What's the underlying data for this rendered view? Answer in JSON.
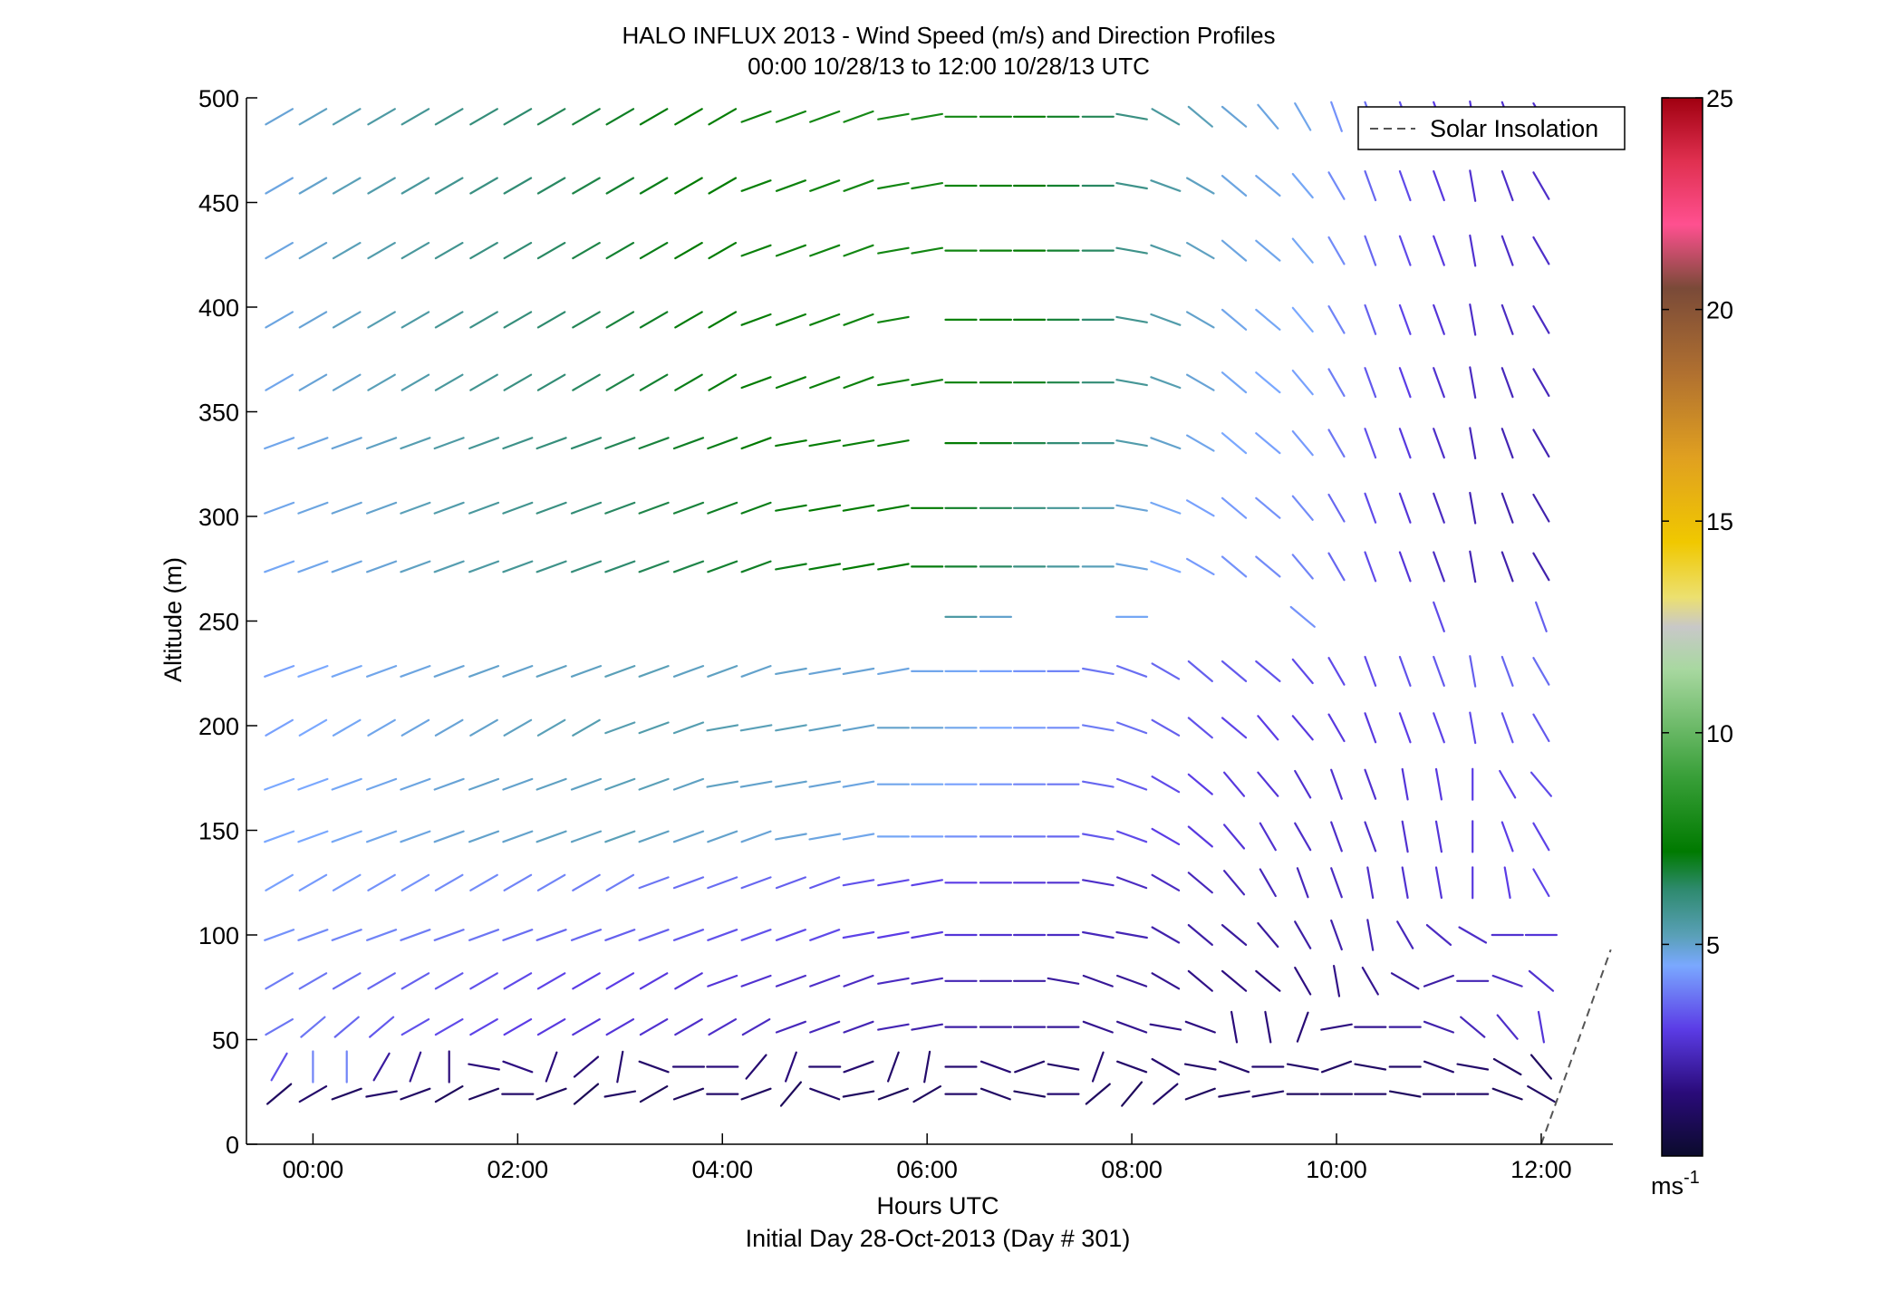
{
  "title": "HALO INFLUX 2013 - Wind Speed (m/s) and Direction Profiles",
  "subtitle": "00:00 10/28/13 to 12:00 10/28/13  UTC",
  "legend_label": "Solar Insolation",
  "colorbar_unit_base": "ms",
  "colorbar_unit_exp": "-1",
  "chart_data": {
    "type": "wind-barb",
    "title": "HALO INFLUX 2013 - Wind Speed (m/s) and Direction Profiles",
    "subtitle": "00:00 10/28/13 to 12:00 10/28/13  UTC",
    "xlabel": "Hours UTC",
    "xlabel2": "Initial Day 28-Oct-2013 (Day # 301)",
    "ylabel": "Altitude (m)",
    "xlim_hours": [
      -0.65,
      12.7
    ],
    "ylim": [
      0,
      500
    ],
    "x_ticks": [
      {
        "value": 0,
        "label": "00:00"
      },
      {
        "value": 2,
        "label": "02:00"
      },
      {
        "value": 4,
        "label": "04:00"
      },
      {
        "value": 6,
        "label": "06:00"
      },
      {
        "value": 8,
        "label": "08:00"
      },
      {
        "value": 10,
        "label": "10:00"
      },
      {
        "value": 12,
        "label": "12:00"
      }
    ],
    "y_ticks": [
      {
        "value": 0,
        "label": "0"
      },
      {
        "value": 50,
        "label": "50"
      },
      {
        "value": 100,
        "label": "100"
      },
      {
        "value": 150,
        "label": "150"
      },
      {
        "value": 200,
        "label": "200"
      },
      {
        "value": 250,
        "label": "250"
      },
      {
        "value": 300,
        "label": "300"
      },
      {
        "value": 350,
        "label": "350"
      },
      {
        "value": 400,
        "label": "400"
      },
      {
        "value": 450,
        "label": "450"
      },
      {
        "value": 500,
        "label": "500"
      }
    ],
    "colorbar": {
      "range": [
        0,
        25
      ],
      "ticks": [
        {
          "value": 5,
          "label": "5"
        },
        {
          "value": 10,
          "label": "10"
        },
        {
          "value": 15,
          "label": "15"
        },
        {
          "value": 20,
          "label": "20"
        },
        {
          "value": 25,
          "label": "25"
        }
      ],
      "stops": [
        {
          "v": 0,
          "c": "#0b0b2c"
        },
        {
          "v": 1.5,
          "c": "#2a0b7a"
        },
        {
          "v": 3,
          "c": "#5b3ce6"
        },
        {
          "v": 4.5,
          "c": "#7aa8ff"
        },
        {
          "v": 5.2,
          "c": "#5aa0b8"
        },
        {
          "v": 6.3,
          "c": "#2e8a6e"
        },
        {
          "v": 7.2,
          "c": "#007a00"
        },
        {
          "v": 9,
          "c": "#3aa03a"
        },
        {
          "v": 11.5,
          "c": "#a8d8a0"
        },
        {
          "v": 12.5,
          "c": "#c8c8c8"
        },
        {
          "v": 13.2,
          "c": "#ece070"
        },
        {
          "v": 14.5,
          "c": "#f0c800"
        },
        {
          "v": 16.5,
          "c": "#e0a020"
        },
        {
          "v": 18.5,
          "c": "#b07030"
        },
        {
          "v": 20.5,
          "c": "#7a4a38"
        },
        {
          "v": 22,
          "c": "#ff5090"
        },
        {
          "v": 23.5,
          "c": "#e03050"
        },
        {
          "v": 25,
          "c": "#a00010"
        }
      ]
    },
    "legend": {
      "position": "top-right",
      "entries": [
        {
          "name": "Solar Insolation",
          "style": "dashed",
          "color": "#555555"
        }
      ]
    },
    "times_hours": [
      -0.33,
      0.0,
      0.33,
      0.67,
      1.0,
      1.33,
      1.67,
      2.0,
      2.33,
      2.67,
      3.0,
      3.33,
      3.67,
      4.0,
      4.33,
      4.67,
      5.0,
      5.33,
      5.67,
      6.0,
      6.33,
      6.67,
      7.0,
      7.33,
      7.67,
      8.0,
      8.33,
      8.67,
      9.0,
      9.33,
      9.67,
      10.0,
      10.33,
      10.67,
      11.0,
      11.33,
      11.67,
      12.0
    ],
    "altitudes_m": [
      24,
      37,
      56,
      78,
      100,
      125,
      147,
      172,
      199,
      226,
      252,
      276,
      304,
      335,
      364,
      394,
      427,
      458,
      491
    ],
    "wind_direction_deg_rows": [
      "230,240,250,260,250,240,250,270,250,230,260,240,250,270,250,220,290,260,250,240,270,290,280,270,230,220,230,250,260,260,270,270,270,280,270,270,290,300",
      "210,0,0,210,200,0,280,290,200,230,190,290,270,270,220,200,270,250,200,190,270,290,250,280,200,290,300,280,290,270,280,250,280,270,290,280,300,320",
      "240,230,230,230,240,240,240,240,240,240,240,240,240,240,240,250,250,250,260,260,270,270,270,270,290,290,280,290,350,350,200,260,270,270,290,310,320,350",
      "240,240,240,240,240,240,240,240,240,240,240,240,240,250,250,250,250,250,260,260,270,270,270,280,290,290,300,310,310,310,330,350,330,300,250,270,290,310",
      "250,250,250,250,250,250,250,250,250,250,250,250,250,250,250,250,250,260,260,260,270,270,270,270,280,280,300,310,310,320,330,340,350,330,310,300,270,270",
      "240,240,240,240,240,240,240,240,240,240,240,250,250,250,250,250,250,260,260,260,270,270,270,270,280,290,300,310,320,330,340,340,350,350,350,360,350,330",
      "250,250,250,250,250,250,250,250,250,250,250,250,250,250,250,260,260,260,270,270,270,270,270,270,280,290,300,310,320,330,330,340,340,350,350,360,340,330",
      "250,250,250,250,250,250,250,250,250,250,250,250,250,260,260,260,260,260,270,270,270,270,270,270,280,290,300,310,320,320,330,340,340,350,350,360,330,320",
      "240,240,240,240,240,240,240,240,240,240,250,250,250,260,260,260,260,260,270,270,270,270,270,270,280,290,300,310,310,320,320,330,340,340,340,350,340,330",
      "250,250,250,250,250,250,250,250,250,250,250,250,250,250,250,260,260,260,260,270,270,270,270,270,280,290,300,310,310,310,320,330,340,340,340,350,340,330",
      "-1,-1,-1,-1,-1,-1,-1,-1,-1,-1,-1,-1,-1,-1,-1,-1,-1,-1,-1,-1,270,270,-1,-1,-1,270,-1,-1,-1,-1,310,-1,-1,-1,340,-1,-1,340",
      "250,250,250,250,250,250,250,250,250,250,250,250,250,250,250,260,260,260,260,270,270,270,270,270,270,280,290,300,310,310,320,330,340,340,340,350,340,330",
      "250,250,250,250,250,250,250,250,250,250,250,250,250,250,250,260,260,260,260,270,270,270,270,270,270,280,290,300,310,310,320,330,340,340,340,350,340,330",
      "250,250,250,250,250,250,250,250,250,250,250,250,250,250,250,260,260,260,260,-1,270,270,270,270,270,280,290,300,310,310,320,330,340,340,340,350,340,330",
      "240,240,240,240,240,240,240,240,240,240,240,240,240,240,250,250,250,250,260,260,270,270,270,270,270,280,290,300,310,310,320,330,340,340,340,350,340,330",
      "240,240,240,240,240,240,240,240,240,240,240,240,240,240,250,250,250,250,260,-1,270,270,270,270,270,280,290,300,310,310,320,330,340,340,340,350,340,330",
      "240,240,240,240,240,240,240,240,240,240,240,240,240,240,250,250,250,250,260,260,270,270,270,270,270,280,290,300,310,310,320,330,340,340,340,350,340,330",
      "240,240,240,240,240,240,240,240,240,240,240,240,240,240,250,250,250,250,260,260,270,270,270,270,270,280,290,300,310,310,320,330,340,340,340,350,340,330",
      "240,240,240,240,240,240,240,240,240,240,240,240,240,240,250,250,250,250,260,260,270,270,270,270,270,280,300,310,310,320,330,340,340,340,340,350,340,330"
    ],
    "wind_speed_ms_rows": [
      "1.0,1.2,1.0,1.2,1.1,0.9,1.0,1.2,1.0,0.8,1.1,0.9,1.0,1.2,1.0,0.9,1.2,1.0,0.9,1.0,1.2,1.1,1.0,1.3,1.0,0.9,1.2,1.0,1.1,1.2,1.0,1.1,1.2,1.0,1.2,1.2,1.0,1.1",
      "3.3,4.0,4.0,2.0,1.8,1.5,1.5,1.6,1.5,1.4,1.3,1.2,1.4,1.5,1.3,1.5,1.3,1.3,1.2,1.2,1.3,1.4,1.2,1.2,1.3,1.2,1.3,1.2,1.2,1.3,1.2,1.1,1.1,1.2,1.3,1.2,1.1,1.0",
      "3.8,3.8,3.6,3.4,3.3,3.2,3.1,3.0,2.9,2.8,2.8,2.7,2.6,2.6,2.5,2.4,2.4,2.3,2.3,2.2,2.1,2.0,2.0,1.9,1.8,1.8,1.7,1.6,1.5,1.5,1.4,1.6,1.8,2.0,2.2,2.4,2.6,2.8",
      "3.9,3.8,3.7,3.6,3.5,3.4,3.3,3.2,3.1,3.0,3.0,2.9,2.8,2.8,2.7,2.6,2.6,2.5,2.5,2.4,2.3,2.2,2.1,2.0,1.9,1.9,1.8,1.7,1.6,1.6,1.6,1.7,1.8,2.0,2.1,2.3,2.5,2.7",
      "4.2,4.1,4.0,4.0,3.9,3.8,3.8,3.7,3.6,3.6,3.5,3.5,3.4,3.3,3.3,3.2,3.2,3.1,3.0,2.9,2.8,2.7,2.6,2.5,2.4,2.3,2.2,2.1,2.0,2.0,2.1,2.2,2.3,2.4,2.5,2.6,2.7,2.8",
      "4.4,4.3,4.3,4.2,4.2,4.1,4.1,4.0,4.0,3.9,3.9,3.8,3.7,3.7,3.6,3.5,3.4,3.3,3.2,3.1,3.0,2.9,2.8,2.7,2.6,2.5,2.5,2.4,2.4,2.4,2.4,2.5,2.6,2.7,2.8,2.9,3.0,3.1",
      "4.5,4.5,4.6,4.7,4.8,4.9,5.0,5.0,5.1,5.1,5.2,5.1,5.0,5.0,4.9,4.9,4.8,4.7,4.6,4.4,4.2,4.0,3.8,3.6,3.4,3.2,3.0,2.9,2.8,2.7,2.6,2.6,2.6,2.7,2.8,2.9,3.0,3.1",
      "4.5,4.5,4.6,4.7,4.8,4.9,5.0,5.0,5.1,5.1,5.2,5.2,5.1,5.1,5.0,5.0,4.9,4.8,4.7,4.6,4.4,4.2,4.0,3.8,3.6,3.4,3.2,3.0,2.9,2.8,2.7,2.7,2.7,2.8,2.9,3.0,3.1,3.2",
      "4.4,4.5,4.6,4.7,4.8,4.9,5.0,5.1,5.2,5.3,5.3,5.4,5.3,5.3,5.2,5.2,5.1,5.0,5.0,4.9,4.7,4.5,4.3,4.1,3.9,3.7,3.5,3.3,3.1,3.0,2.9,2.9,2.9,3.0,3.1,3.2,3.3,3.4",
      "4.4,4.5,4.6,4.7,4.8,4.9,5.0,5.0,5.1,5.1,5.2,5.2,5.1,5.1,5.0,5.0,4.9,4.9,4.8,4.7,4.6,4.4,4.2,4.0,3.8,3.7,3.6,3.5,3.4,3.3,3.2,3.2,3.2,3.3,3.4,3.5,3.6,3.7",
      "0,0,0,0,0,0,0,0,0,0,0,0,0,0,0,0,0,0,0,0,5.5,5.0,0,0,0,4.6,0,0,0,0,4.2,0,0,0,3.2,0,0,3.5",
      "4.6,4.7,4.8,4.9,5.1,5.3,5.5,5.7,5.9,6.1,6.3,6.5,6.6,6.8,6.9,7.0,7.1,7.2,7.2,7.1,6.8,6.4,6.0,5.6,5.2,4.8,4.5,4.3,4.2,4.1,4.0,3.6,3.2,2.8,2.5,2.3,2.2,2.2",
      "4.7,4.8,4.9,5.0,5.2,5.4,5.6,5.8,6.0,6.2,6.4,6.6,6.7,6.9,7.0,7.1,7.2,7.3,7.3,7.2,6.9,6.5,6.1,5.7,5.3,4.9,4.6,4.4,4.3,4.2,4.1,3.6,3.2,2.8,2.5,2.3,2.2,2.2",
      "4.7,4.8,4.9,5.1,5.3,5.5,5.7,5.9,6.1,6.3,6.5,6.7,6.9,7.0,7.2,7.3,7.4,7.5,7.5,0,7.3,7.0,6.6,6.2,5.8,5.4,5.0,4.7,4.5,4.4,4.3,3.8,3.3,2.9,2.6,2.4,2.3,2.3",
      "4.7,4.9,5.0,5.2,5.4,5.6,5.8,6.0,6.2,6.4,6.6,6.8,7.0,7.1,7.3,7.4,7.5,7.6,7.6,7.6,7.5,7.3,7.0,6.6,6.2,5.7,5.3,4.9,4.6,4.5,4.4,3.9,3.4,3.0,2.7,2.5,2.4,2.4",
      "4.8,4.9,5.1,5.3,5.5,5.7,5.9,6.1,6.3,6.5,6.7,6.9,7.1,7.2,7.4,7.5,7.6,7.7,7.7,0,7.6,7.4,7.1,6.7,6.3,5.8,5.4,5.0,4.7,4.6,4.5,4.0,3.5,3.1,2.8,2.6,2.5,2.5",
      "4.8,5.0,5.2,5.4,5.6,5.8,6.0,6.2,6.4,6.6,6.8,7.0,7.2,7.3,7.5,7.6,7.7,7.8,7.8,7.8,7.7,7.5,7.2,6.8,6.4,5.9,5.5,5.1,4.8,4.7,4.6,4.1,3.6,3.2,2.9,2.7,2.6,2.6",
      "4.8,5.0,5.2,5.4,5.6,5.8,6.0,6.2,6.4,6.6,6.8,7.0,7.2,7.3,7.5,7.6,7.7,7.8,7.8,7.8,7.7,7.5,7.2,6.8,6.4,5.9,5.5,5.1,4.8,4.7,4.6,4.1,3.6,3.2,2.9,2.7,2.6,2.6",
      "4.9,5.1,5.3,5.5,5.7,5.9,6.1,6.3,6.5,6.7,6.9,7.1,7.3,7.4,7.6,7.7,7.8,7.9,7.9,7.9,7.8,7.6,7.3,6.9,6.5,6.0,5.6,5.2,4.9,4.8,4.7,4.2,3.7,3.3,3.0,2.8,2.7,2.7"
    ],
    "solar_insolation_line": {
      "x_hours": [
        12.0,
        12.68
      ],
      "y_m": [
        0,
        93
      ]
    }
  }
}
